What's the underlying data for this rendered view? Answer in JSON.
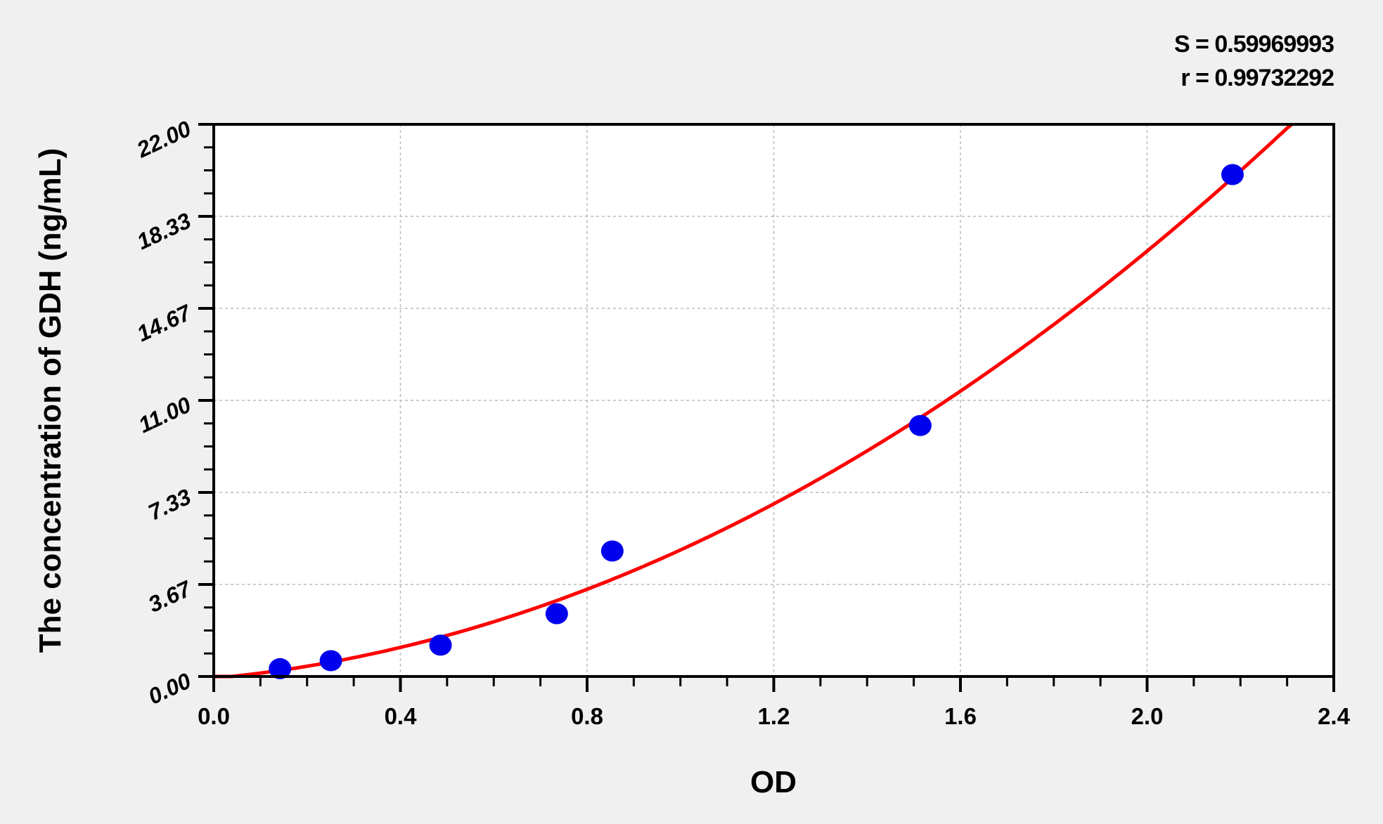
{
  "chart_data": {
    "type": "scatter",
    "xlabel": "OD",
    "ylabel": "The concentration of GDH (ng/mL)",
    "xlim": [
      0,
      2.4
    ],
    "ylim": [
      0,
      22
    ],
    "x_ticks": [
      "0.0",
      "0.4",
      "0.8",
      "1.2",
      "1.6",
      "2.0",
      "2.4"
    ],
    "y_ticks": [
      "0.00",
      "3.67",
      "7.33",
      "11.00",
      "14.67",
      "18.33",
      "22.00"
    ],
    "grid": true,
    "annotations": {
      "S": "S = 0.59969993",
      "r": "r = 0.99732292"
    },
    "points": {
      "x": [
        0.142,
        0.251,
        0.486,
        0.735,
        0.854,
        1.514,
        2.183
      ],
      "y": [
        0.31,
        0.63,
        1.25,
        2.5,
        5,
        10,
        20
      ]
    },
    "fit_curve": {
      "type": "polynomial",
      "coefficients": [
        -0.07,
        1.71,
        3.4
      ],
      "x_range": [
        0,
        2.31
      ]
    },
    "colors": {
      "points": "#0000ee",
      "curve": "#ff0000",
      "background": "#f0f0f0",
      "plot": "#ffffff"
    }
  }
}
